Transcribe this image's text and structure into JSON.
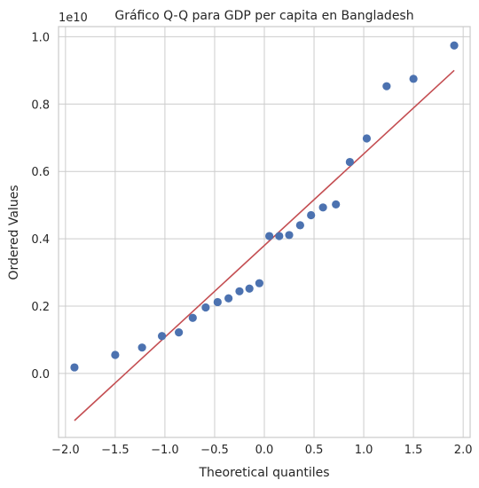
{
  "chart_data": {
    "type": "scatter",
    "title": "Gráfico Q-Q para GDP per capita en Bangladesh",
    "xlabel": "Theoretical quantiles",
    "ylabel": "Ordered Values",
    "y_offset_label": "1e10",
    "xlim": [
      -2.07,
      2.07
    ],
    "ylim": [
      -0.19,
      1.03
    ],
    "x_ticks": [
      -2.0,
      -1.5,
      -1.0,
      -0.5,
      0.0,
      0.5,
      1.0,
      1.5,
      2.0
    ],
    "x_tick_labels": [
      "−2.0",
      "−1.5",
      "−1.0",
      "−0.5",
      "0.0",
      "0.5",
      "1.0",
      "1.5",
      "2.0"
    ],
    "y_ticks": [
      0.0,
      0.2,
      0.4,
      0.6,
      0.8,
      1.0
    ],
    "y_tick_labels": [
      "0.0",
      "0.2",
      "0.4",
      "0.6",
      "0.8",
      "1.0"
    ],
    "grid": true,
    "points": [
      {
        "x": -1.91,
        "y": 0.018
      },
      {
        "x": -1.5,
        "y": 0.055
      },
      {
        "x": -1.23,
        "y": 0.077
      },
      {
        "x": -1.03,
        "y": 0.111
      },
      {
        "x": -0.86,
        "y": 0.122
      },
      {
        "x": -0.72,
        "y": 0.165
      },
      {
        "x": -0.59,
        "y": 0.196
      },
      {
        "x": -0.47,
        "y": 0.212
      },
      {
        "x": -0.36,
        "y": 0.223
      },
      {
        "x": -0.25,
        "y": 0.244
      },
      {
        "x": -0.15,
        "y": 0.252
      },
      {
        "x": -0.05,
        "y": 0.268
      },
      {
        "x": 0.05,
        "y": 0.408
      },
      {
        "x": 0.15,
        "y": 0.408
      },
      {
        "x": 0.25,
        "y": 0.411
      },
      {
        "x": 0.36,
        "y": 0.44
      },
      {
        "x": 0.47,
        "y": 0.47
      },
      {
        "x": 0.59,
        "y": 0.493
      },
      {
        "x": 0.72,
        "y": 0.502
      },
      {
        "x": 0.86,
        "y": 0.628
      },
      {
        "x": 1.03,
        "y": 0.698
      },
      {
        "x": 1.23,
        "y": 0.853
      },
      {
        "x": 1.5,
        "y": 0.875
      },
      {
        "x": 1.91,
        "y": 0.974
      }
    ],
    "fit_line": {
      "x": [
        -1.91,
        1.91
      ],
      "y": [
        -0.14,
        0.9
      ]
    },
    "point_color": "#4c72b0",
    "line_color": "#c44e52"
  }
}
